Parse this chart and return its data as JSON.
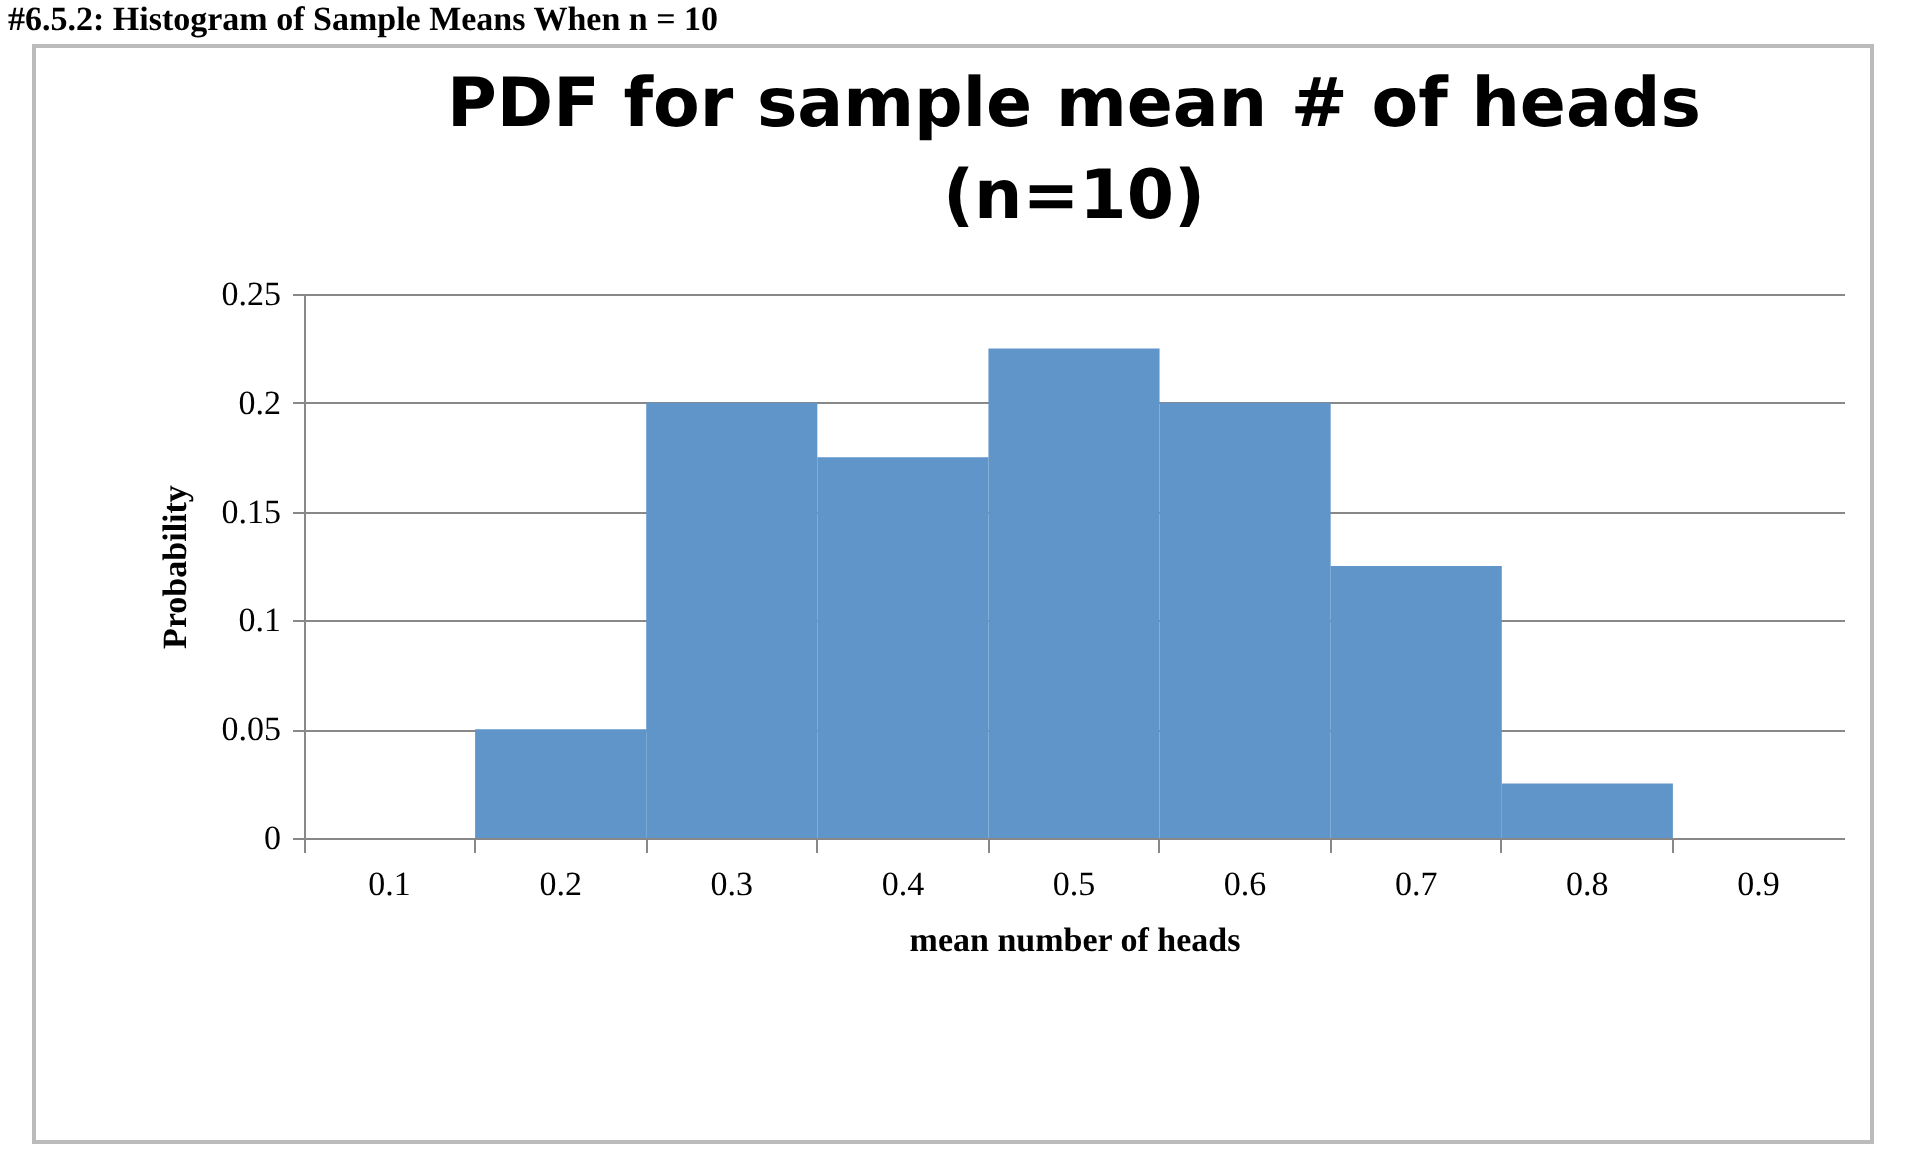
{
  "chart_data": {
    "type": "bar",
    "title": [
      "PDF for sample mean # of heads",
      "(n=10)"
    ],
    "xlabel": "mean number of heads",
    "ylabel": "Probability",
    "annotations": [
      "#6.5.2: Histogram of Sample Means When n = 10"
    ],
    "categories": [
      "0.1",
      "0.2",
      "0.3",
      "0.4",
      "0.5",
      "0.6",
      "0.7",
      "0.8",
      "0.9"
    ],
    "values": [
      0,
      0.05,
      0.2,
      0.175,
      0.225,
      0.2,
      0.125,
      0.025,
      0
    ],
    "color": "#5f95c9",
    "ylim": [
      0,
      0.25
    ],
    "yticks": [
      0,
      0.05,
      0.1,
      0.15,
      0.2,
      0.25
    ],
    "grid": "y"
  }
}
